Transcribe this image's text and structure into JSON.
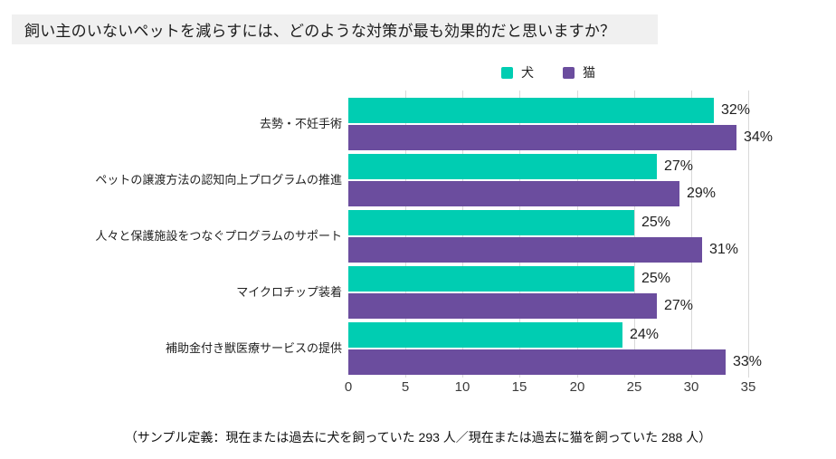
{
  "title": {
    "text": "飼い主のいないペットを減らすには、どのような対策が最も効果的だと思いますか？",
    "background": "#f0f0f0"
  },
  "legend": {
    "items": [
      {
        "label": "犬",
        "color": "#00cdb2"
      },
      {
        "label": "猫",
        "color": "#6b4d9e"
      }
    ]
  },
  "chart_data": {
    "type": "bar",
    "orientation": "horizontal",
    "title": "",
    "xlabel": "",
    "ylabel": "",
    "categories": [
      "去勢・不妊手術",
      "ペットの譲渡方法の認知向上プログラムの推進",
      "人々と保護施設をつなぐプログラムのサポート",
      "マイクロチップ装着",
      "補助金付き獣医療サービスの提供"
    ],
    "series": [
      {
        "name": "犬",
        "color": "#00cdb2",
        "values": [
          32,
          27,
          25,
          25,
          24
        ]
      },
      {
        "name": "猫",
        "color": "#6b4d9e",
        "values": [
          34,
          29,
          31,
          27,
          33
        ]
      }
    ],
    "value_suffix": "%",
    "xlim": [
      0,
      35
    ],
    "xticks": [
      0,
      5,
      10,
      15,
      20,
      25,
      30,
      35
    ],
    "grid": true,
    "gridline_color": "#d9d9d9",
    "legend_position": "top"
  },
  "footer": {
    "text": "（サンプル定義：現在または過去に犬を飼っていた 293 人／現在または過去に猫を飼っていた 288 人）"
  }
}
